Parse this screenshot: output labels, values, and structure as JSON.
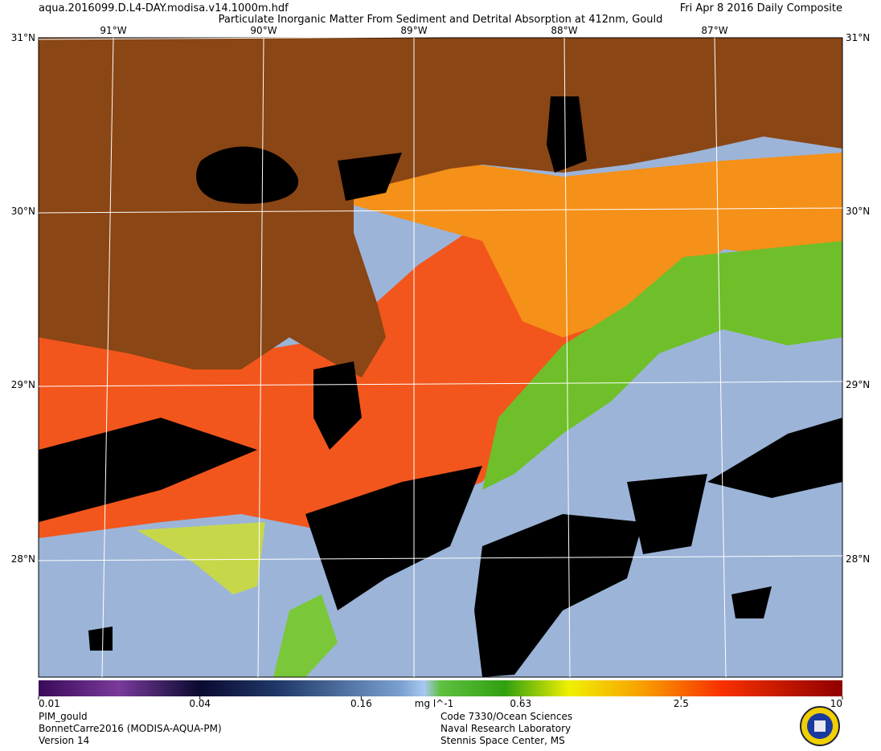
{
  "header": {
    "file": "aqua.2016099.D.L4-DAY.modisa.v14.1000m.hdf",
    "title": "Particulate Inorganic Matter From Sediment and Detrital Absorption at 412nm, Gould",
    "date": "Fri Apr  8 2016 Daily Composite"
  },
  "map": {
    "latitudes": [
      "31°N",
      "30°N",
      "29°N",
      "28°N"
    ],
    "longitudes": [
      "91°W",
      "90°W",
      "89°W",
      "88°W",
      "87°W"
    ]
  },
  "colorbar": {
    "scale": "log",
    "range": [
      0.01,
      10
    ],
    "ticks": [
      0.01,
      0.04,
      0.16,
      0.63,
      2.5,
      10
    ],
    "unit": "mg l^-1"
  },
  "footer": {
    "left": [
      "PIM_gould",
      "BonnetCarre2016 (MODISA-AQUA-PM)",
      "Version 14"
    ],
    "center": [
      "Code 7330/Ocean Sciences",
      "Naval Research Laboratory",
      "Stennis Space Center, MS"
    ]
  }
}
